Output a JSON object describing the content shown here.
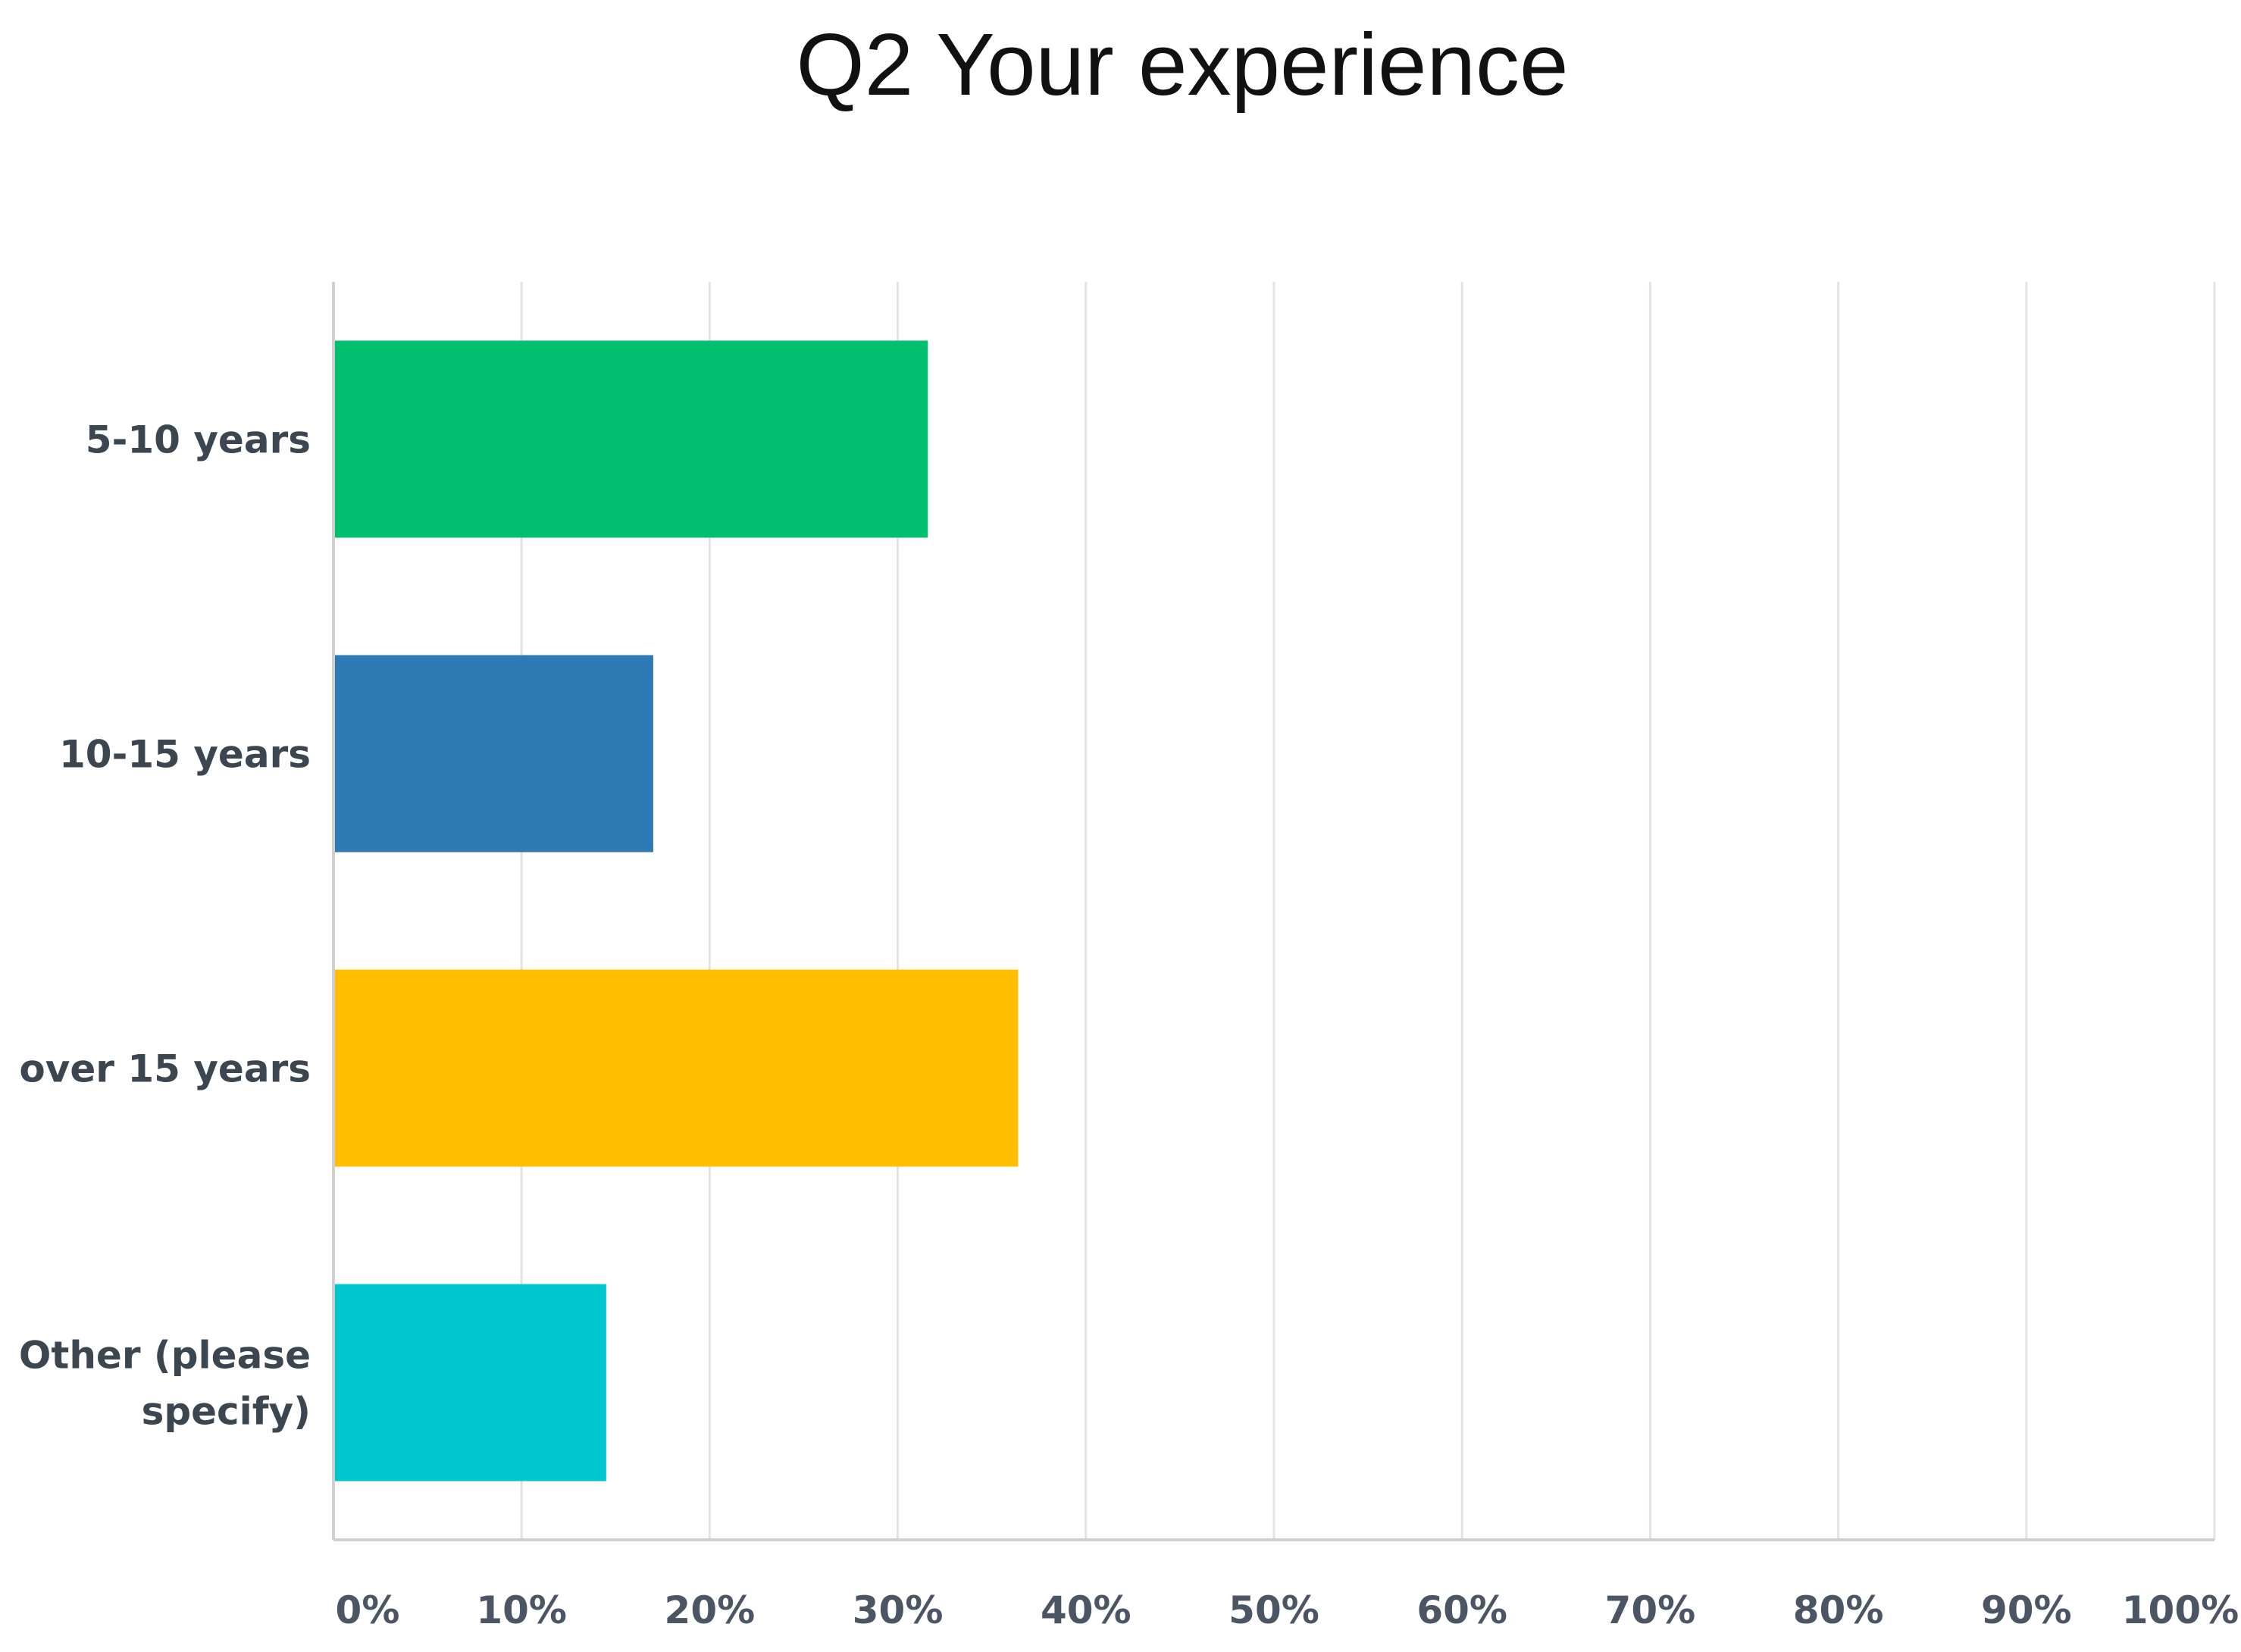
{
  "chart_data": {
    "type": "bar",
    "orientation": "horizontal",
    "title": "Q2 Your experience",
    "categories": [
      "5-10 years",
      "10-15 years",
      "over 15 years",
      "Other (please specify)"
    ],
    "category_lines": [
      [
        "5-10 years"
      ],
      [
        "10-15 years"
      ],
      [
        "over 15 years"
      ],
      [
        "Other (please",
        "specify)"
      ]
    ],
    "values": [
      31.6,
      17.0,
      36.4,
      14.5
    ],
    "colors": [
      "#00bf6f",
      "#2d7ab5",
      "#ffbe00",
      "#00c7cd"
    ],
    "xlim": [
      0,
      100
    ],
    "xticks": [
      "0%",
      "10%",
      "20%",
      "30%",
      "40%",
      "50%",
      "60%",
      "70%",
      "80%",
      "90%",
      "100%"
    ],
    "xlabel": "",
    "ylabel": "",
    "grid": true,
    "legend": "none"
  }
}
